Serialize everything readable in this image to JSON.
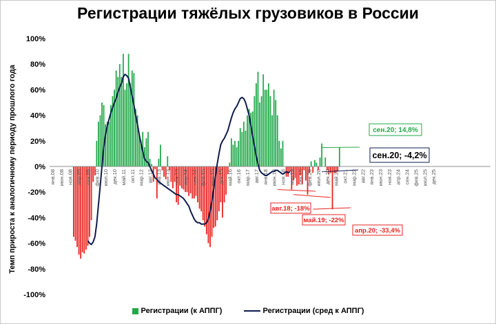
{
  "chart_data": {
    "type": "bar",
    "title": "Регистрации тяжёлых грузовиков в России",
    "ylabel": "Темп прироста к аналогичному периоду прошлого года",
    "ylim": [
      -1.0,
      1.0
    ],
    "y_ticks": [
      "100%",
      "80%",
      "60%",
      "40%",
      "20%",
      "0%",
      "-20%",
      "-40%",
      "-60%",
      "-80%",
      "-100%"
    ],
    "x_tick_labels": [
      "янв.08",
      "июн.08",
      "ноя.08",
      "апр.09",
      "сен.09",
      "фев.10",
      "июл.10",
      "дек.10",
      "май.11",
      "окт.11",
      "мар.12",
      "авг.12",
      "янв.13",
      "июн.13",
      "ноя.13",
      "апр.14",
      "сен.14",
      "фев.15",
      "июл.15",
      "дек.15",
      "май.16",
      "окт.16",
      "мар.17",
      "авг.17",
      "янв.18",
      "июн.18",
      "ноя.18",
      "апр.19",
      "сен.19",
      "фев.20",
      "июл.20",
      "дек.20",
      "май.21",
      "окт.21",
      "мар.22",
      "авг.22",
      "янв.23",
      "июн.23",
      "ноя.23",
      "апр.24",
      "сен.24",
      "фев.25",
      "июл.25",
      "дек.25"
    ],
    "grid": false,
    "legend_position": "bottom",
    "colors": {
      "positive": "#22a94a",
      "negative": "#e8231f",
      "line": "#0d1b4c",
      "annotation_green": "#22a94a",
      "annotation_red": "#e8231f",
      "annotation_dark": "#0d1b4c"
    },
    "series": [
      {
        "name": "Регистрации (к АППГ)",
        "kind": "bar",
        "start": "янв.09",
        "values": [
          -0.55,
          -0.58,
          -0.63,
          -0.69,
          -0.72,
          -0.67,
          -0.68,
          -0.65,
          -0.62,
          -0.55,
          -0.42,
          -0.12,
          -0.07,
          0.2,
          0.35,
          0.4,
          0.5,
          0.48,
          0.33,
          0.35,
          0.35,
          0.48,
          0.55,
          0.6,
          0.75,
          0.7,
          0.8,
          0.7,
          0.88,
          0.6,
          0.65,
          0.88,
          0.65,
          0.75,
          0.73,
          0.45,
          0.4,
          0.25,
          0.2,
          0.27,
          0.15,
          0.22,
          0.27,
          0.06,
          0.02,
          -0.12,
          -0.02,
          -0.25,
          0.06,
          0.17,
          -0.03,
          -0.08,
          -0.1,
          0.08,
          -0.03,
          -0.12,
          -0.17,
          -0.12,
          -0.28,
          -0.3,
          -0.15,
          -0.17,
          -0.18,
          -0.2,
          -0.2,
          -0.23,
          -0.21,
          -0.25,
          -0.25,
          -0.23,
          -0.28,
          -0.33,
          -0.35,
          -0.42,
          -0.47,
          -0.53,
          -0.6,
          -0.63,
          -0.55,
          -0.48,
          -0.47,
          -0.42,
          -0.35,
          -0.28,
          -0.4,
          -0.28,
          -0.22,
          -0.06,
          0.03,
          0.22,
          0.17,
          0.2,
          0.15,
          0.2,
          0.3,
          0.27,
          0.35,
          0.28,
          0.4,
          0.45,
          0.42,
          0.43,
          0.55,
          0.65,
          0.74,
          0.5,
          0.55,
          0.72,
          0.6,
          0.6,
          0.65,
          0.55,
          0.4,
          0.6,
          0.52,
          0.4,
          0.2,
          0.14,
          0.2,
          0.0,
          -0.08,
          -0.08,
          -0.04,
          -0.18,
          -0.11,
          -0.09,
          -0.15,
          -0.14,
          -0.07,
          -0.14,
          -0.03,
          -0.11,
          -0.22,
          -0.05,
          0.04,
          -0.05,
          0.05,
          0.03,
          -0.03,
          0.07,
          0.18,
          0.0,
          0.07,
          -0.03,
          -0.06,
          -0.05,
          -0.334,
          -0.05,
          -0.05,
          -0.04,
          0.148
        ]
      },
      {
        "name": "Регистрации (сред к АППГ)",
        "kind": "line",
        "start": "сен.09",
        "values": [
          -0.58,
          -0.6,
          -0.61,
          -0.59,
          -0.55,
          -0.45,
          -0.3,
          -0.15,
          0.0,
          0.15,
          0.25,
          0.32,
          0.37,
          0.42,
          0.46,
          0.5,
          0.53,
          0.58,
          0.62,
          0.65,
          0.7,
          0.72,
          0.71,
          0.69,
          0.62,
          0.55,
          0.48,
          0.4,
          0.33,
          0.25,
          0.18,
          0.12,
          0.06,
          0.04,
          0.03,
          0.0,
          -0.03,
          -0.06,
          -0.09,
          -0.1,
          -0.12,
          -0.13,
          -0.14,
          -0.15,
          -0.16,
          -0.17,
          -0.18,
          -0.19,
          -0.2,
          -0.21,
          -0.22,
          -0.22,
          -0.23,
          -0.24,
          -0.25,
          -0.27,
          -0.29,
          -0.31,
          -0.35,
          -0.38,
          -0.41,
          -0.43,
          -0.44,
          -0.44,
          -0.45,
          -0.45,
          -0.45,
          -0.44,
          -0.41,
          -0.35,
          -0.27,
          -0.18,
          -0.08,
          0.02,
          0.1,
          0.17,
          0.2,
          0.22,
          0.25,
          0.28,
          0.33,
          0.38,
          0.42,
          0.45,
          0.47,
          0.5,
          0.53,
          0.54,
          0.53,
          0.5,
          0.45,
          0.4,
          0.32,
          0.24,
          0.16,
          0.08,
          0.02,
          -0.03,
          -0.05,
          -0.06,
          -0.07,
          -0.07,
          -0.06,
          -0.05,
          -0.04,
          -0.04,
          -0.03,
          -0.03,
          -0.04,
          -0.05,
          -0.06,
          -0.05,
          -0.04,
          -0.05,
          -0.042
        ]
      }
    ],
    "annotations": [
      {
        "text": "сен.20; 14,8%",
        "style": "green",
        "at": "сен.20",
        "value": 0.148
      },
      {
        "text": "сен.20; -4,2%",
        "style": "dark",
        "at": "сен.20",
        "value": -0.042
      },
      {
        "text": "авг.18; -18%",
        "style": "red",
        "at": "авг.18",
        "value": -0.18
      },
      {
        "text": "май.19; -22%",
        "style": "red",
        "at": "май.19",
        "value": -0.22
      },
      {
        "text": "апр.20; -33,4%",
        "style": "red",
        "at": "апр.20",
        "value": -0.334
      }
    ]
  }
}
